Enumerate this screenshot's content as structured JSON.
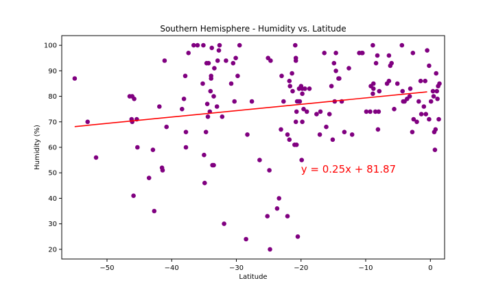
{
  "chart_data": {
    "type": "scatter",
    "title": "Southern Hemisphere - Humidity vs. Latitude",
    "xlabel": "Latitude",
    "ylabel": "Humidity (%)",
    "xlim": [
      -57,
      2.2
    ],
    "ylim": [
      16.2,
      103.8
    ],
    "xticks": [
      -50,
      -40,
      -30,
      -20,
      -10,
      0
    ],
    "xtick_labels": [
      "−50",
      "−40",
      "−30",
      "−20",
      "−10",
      "0"
    ],
    "yticks": [
      20,
      30,
      40,
      50,
      60,
      70,
      80,
      90,
      100
    ],
    "grid": false,
    "point_color": "#800080",
    "line_color": "#ff0000",
    "regression": {
      "slope": 0.25,
      "intercept": 81.87,
      "x_range": [
        -55.0,
        -0.5
      ],
      "equation_text": "y = 0.25x + 81.87",
      "annotation_at": [
        -20,
        50
      ]
    },
    "points": [
      [
        -55.0,
        87
      ],
      [
        -53.0,
        70
      ],
      [
        -51.7,
        56
      ],
      [
        -46.5,
        80
      ],
      [
        -46.2,
        71
      ],
      [
        -46.1,
        80
      ],
      [
        -46.1,
        70
      ],
      [
        -45.9,
        41
      ],
      [
        -45.8,
        79
      ],
      [
        -45.4,
        71
      ],
      [
        -45.3,
        60
      ],
      [
        -43.5,
        48
      ],
      [
        -42.9,
        59
      ],
      [
        -42.7,
        35
      ],
      [
        -41.9,
        76
      ],
      [
        -41.5,
        52
      ],
      [
        -41.4,
        51
      ],
      [
        -41.1,
        94
      ],
      [
        -40.8,
        68
      ],
      [
        -38.4,
        75
      ],
      [
        -38.1,
        79
      ],
      [
        -37.9,
        88
      ],
      [
        -37.8,
        66
      ],
      [
        -37.8,
        60
      ],
      [
        -37.4,
        97
      ],
      [
        -36.6,
        100
      ],
      [
        -36.0,
        100
      ],
      [
        -35.2,
        85
      ],
      [
        -35.1,
        100
      ],
      [
        -35.0,
        57
      ],
      [
        -34.9,
        46
      ],
      [
        -34.7,
        66
      ],
      [
        -34.6,
        93
      ],
      [
        -34.5,
        77
      ],
      [
        -34.4,
        72
      ],
      [
        -34.3,
        93
      ],
      [
        -34.1,
        74
      ],
      [
        -34.0,
        82
      ],
      [
        -33.9,
        88
      ],
      [
        -33.9,
        87
      ],
      [
        -33.8,
        99
      ],
      [
        -33.7,
        53
      ],
      [
        -33.5,
        53
      ],
      [
        -33.5,
        80
      ],
      [
        -33.4,
        91
      ],
      [
        -33.0,
        76
      ],
      [
        -32.9,
        94
      ],
      [
        -32.7,
        98
      ],
      [
        -32.6,
        100
      ],
      [
        -32.2,
        72
      ],
      [
        -31.9,
        30
      ],
      [
        -31.6,
        94
      ],
      [
        -30.8,
        85
      ],
      [
        -30.5,
        93
      ],
      [
        -30.3,
        78
      ],
      [
        -30.1,
        95
      ],
      [
        -29.8,
        88
      ],
      [
        -29.5,
        100
      ],
      [
        -28.5,
        24
      ],
      [
        -28.3,
        65
      ],
      [
        -27.6,
        78
      ],
      [
        -26.4,
        55
      ],
      [
        -25.2,
        33
      ],
      [
        -25.1,
        95
      ],
      [
        -24.9,
        51
      ],
      [
        -24.8,
        20
      ],
      [
        -24.7,
        94
      ],
      [
        -23.7,
        36
      ],
      [
        -23.4,
        40
      ],
      [
        -23.1,
        67
      ],
      [
        -23.0,
        88
      ],
      [
        -22.7,
        78
      ],
      [
        -22.1,
        33
      ],
      [
        -22.1,
        65
      ],
      [
        -21.8,
        63
      ],
      [
        -21.8,
        86
      ],
      [
        -21.7,
        84
      ],
      [
        -21.4,
        89
      ],
      [
        -21.3,
        82
      ],
      [
        -21.0,
        61
      ],
      [
        -20.9,
        100
      ],
      [
        -20.8,
        94
      ],
      [
        -20.8,
        95
      ],
      [
        -20.8,
        70
      ],
      [
        -20.7,
        74
      ],
      [
        -20.7,
        61
      ],
      [
        -20.6,
        78
      ],
      [
        -20.5,
        25
      ],
      [
        -20.4,
        78
      ],
      [
        -20.3,
        83
      ],
      [
        -20.2,
        78
      ],
      [
        -20.0,
        84
      ],
      [
        -19.9,
        55
      ],
      [
        -19.8,
        81
      ],
      [
        -19.8,
        83
      ],
      [
        -19.8,
        70
      ],
      [
        -19.6,
        75
      ],
      [
        -19.4,
        83
      ],
      [
        -19.1,
        74
      ],
      [
        -18.7,
        83
      ],
      [
        -17.6,
        73
      ],
      [
        -17.1,
        65
      ],
      [
        -17.0,
        74
      ],
      [
        -16.4,
        97
      ],
      [
        -16.1,
        68
      ],
      [
        -15.6,
        73
      ],
      [
        -15.3,
        84
      ],
      [
        -15.1,
        63
      ],
      [
        -14.9,
        93
      ],
      [
        -14.8,
        78
      ],
      [
        -14.6,
        97
      ],
      [
        -14.6,
        90
      ],
      [
        -14.2,
        87
      ],
      [
        -14.1,
        87
      ],
      [
        -13.7,
        78
      ],
      [
        -13.3,
        66
      ],
      [
        -12.6,
        91
      ],
      [
        -12.1,
        65
      ],
      [
        -11.0,
        97
      ],
      [
        -10.6,
        97
      ],
      [
        -10.5,
        97
      ],
      [
        -9.9,
        74
      ],
      [
        -9.3,
        74
      ],
      [
        -9.2,
        84
      ],
      [
        -8.9,
        100
      ],
      [
        -8.9,
        81
      ],
      [
        -8.8,
        85
      ],
      [
        -8.8,
        83
      ],
      [
        -8.5,
        74
      ],
      [
        -8.4,
        93
      ],
      [
        -8.2,
        96
      ],
      [
        -8.1,
        67
      ],
      [
        -8.0,
        74
      ],
      [
        -7.9,
        82
      ],
      [
        -6.7,
        85
      ],
      [
        -6.4,
        96
      ],
      [
        -6.4,
        86
      ],
      [
        -6.2,
        92
      ],
      [
        -6.0,
        93
      ],
      [
        -5.6,
        75
      ],
      [
        -5.1,
        85
      ],
      [
        -4.4,
        100
      ],
      [
        -4.3,
        82
      ],
      [
        -4.2,
        78
      ],
      [
        -4.0,
        78
      ],
      [
        -3.6,
        79
      ],
      [
        -3.2,
        80
      ],
      [
        -3.1,
        83
      ],
      [
        -2.8,
        66
      ],
      [
        -2.7,
        97
      ],
      [
        -2.6,
        71
      ],
      [
        -2.1,
        70
      ],
      [
        -1.8,
        78
      ],
      [
        -1.5,
        86
      ],
      [
        -1.4,
        73
      ],
      [
        -1.0,
        76
      ],
      [
        -0.8,
        86
      ],
      [
        -0.7,
        73
      ],
      [
        -0.5,
        98
      ],
      [
        -0.2,
        92
      ],
      [
        -0.2,
        71
      ],
      [
        0.1,
        78
      ],
      [
        0.4,
        82
      ],
      [
        0.5,
        80
      ],
      [
        0.6,
        66
      ],
      [
        0.7,
        59
      ],
      [
        0.8,
        67
      ],
      [
        0.9,
        89
      ],
      [
        1.0,
        82
      ],
      [
        1.1,
        79
      ],
      [
        1.2,
        84
      ],
      [
        1.3,
        71
      ],
      [
        1.4,
        85
      ]
    ]
  }
}
